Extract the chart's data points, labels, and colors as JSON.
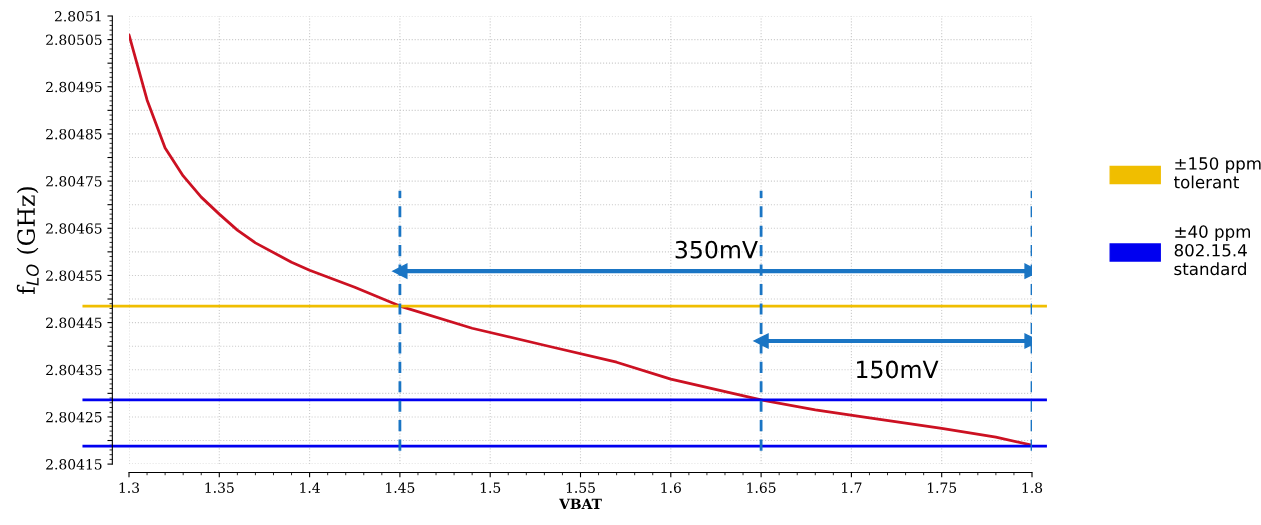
{
  "chart_data": {
    "type": "line",
    "xlabel": "VBAT",
    "ylabel": "f$_{LO}$ (GHz)",
    "series": [
      {
        "color": "#cc1122",
        "x": [
          1.3,
          1.31,
          1.32,
          1.33,
          1.34,
          1.35,
          1.36,
          1.37,
          1.39,
          1.4,
          1.425,
          1.45,
          1.49,
          1.53,
          1.57,
          1.6,
          1.65,
          1.68,
          1.71,
          1.75,
          1.78,
          1.8
        ],
        "values": [
          2.80506,
          2.804922,
          2.80482,
          2.804761,
          2.804716,
          2.80468,
          2.804646,
          2.804619,
          2.804578,
          2.804561,
          2.804525,
          2.804485,
          2.804438,
          2.804402,
          2.804366,
          2.80433,
          2.804286,
          2.804265,
          2.804248,
          2.804226,
          2.804207,
          2.80419
        ]
      },
      {
        "color": "#1a75c4",
        "x": [
          1.45,
          1.8
        ],
        "values": [
          2.804559,
          2.804559
        ],
        "marker": "triangle"
      },
      {
        "color": "#1a75c4",
        "x": [
          1.65,
          1.8
        ],
        "values": [
          2.804411,
          2.804411
        ],
        "marker": "triangle"
      }
    ],
    "xlim": [
      1.3,
      1.8
    ],
    "ylim": [
      2.80415,
      2.8051
    ],
    "xticks": [
      1.3,
      1.35,
      1.4,
      1.45,
      1.5,
      1.55,
      1.6,
      1.65,
      1.7,
      1.75,
      1.8
    ],
    "yticks": [
      2.80415,
      {
        "value": 2.8042,
        "label": null
      },
      2.80425,
      {
        "value": 2.8043,
        "label": null
      },
      2.80435,
      {
        "value": 2.8044,
        "label": null
      },
      2.80445,
      {
        "value": 2.8045,
        "label": null
      },
      2.80455,
      {
        "value": 2.8046,
        "label": null
      },
      2.80465,
      {
        "value": 2.8047,
        "label": null
      },
      2.80475,
      {
        "value": 2.8048,
        "label": null
      },
      2.80485,
      {
        "value": 2.8049,
        "label": null
      },
      2.80495,
      {
        "value": 2.805,
        "label": null
      },
      2.80505,
      2.8051
    ],
    "ref_lines": [
      {
        "axis": "y",
        "value": 2.804485,
        "label": "±150 ppm\ntolerant",
        "color": "#f0be00"
      },
      {
        "axis": "y",
        "value": 2.804286,
        "label": "±40 ppm\n802.15.4\nstandard",
        "color": "#0000f0"
      },
      {
        "axis": "y",
        "value": 2.804188,
        "color": "#0000f0"
      },
      {
        "axis": "x",
        "value": 1.45,
        "color": "#1a75c4",
        "line_style": "dashed"
      },
      {
        "axis": "x",
        "value": 1.65,
        "color": "#1a75c4",
        "line_style": "dashed"
      },
      {
        "axis": "x",
        "value": 1.8,
        "color": "#1a75c4",
        "line_style": "dashed"
      }
    ],
    "annotations": [
      "350mV",
      "150mV"
    ],
    "grid": true,
    "legend": "right",
    "line_style": "solid",
    "marker": "none"
  }
}
